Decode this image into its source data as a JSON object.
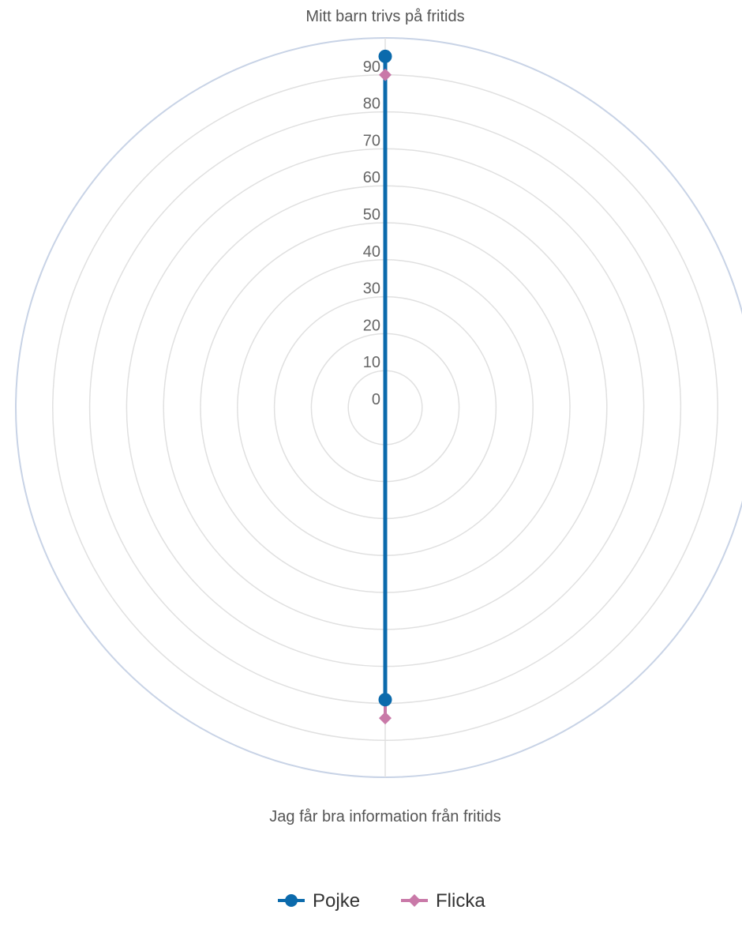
{
  "chart_data": {
    "type": "radar",
    "axes": [
      "Mitt barn trivs på fritids",
      "Jag får bra information från fritids"
    ],
    "series": [
      {
        "name": "Pojke",
        "values": [
          95,
          79
        ],
        "color": "#0b6aac",
        "marker": "circle"
      },
      {
        "name": "Flicka",
        "values": [
          90,
          84
        ],
        "color": "#c979a8",
        "marker": "diamond"
      }
    ],
    "rlim": [
      0,
      100
    ],
    "r_ticks": [
      0,
      10,
      20,
      30,
      40,
      50,
      60,
      70,
      80,
      90
    ],
    "grid": true,
    "legend_position": "bottom-center",
    "colors": {
      "grid": "#e0e0e0",
      "outer_ring": "#c8d3e6",
      "tick_text": "#666666"
    }
  }
}
